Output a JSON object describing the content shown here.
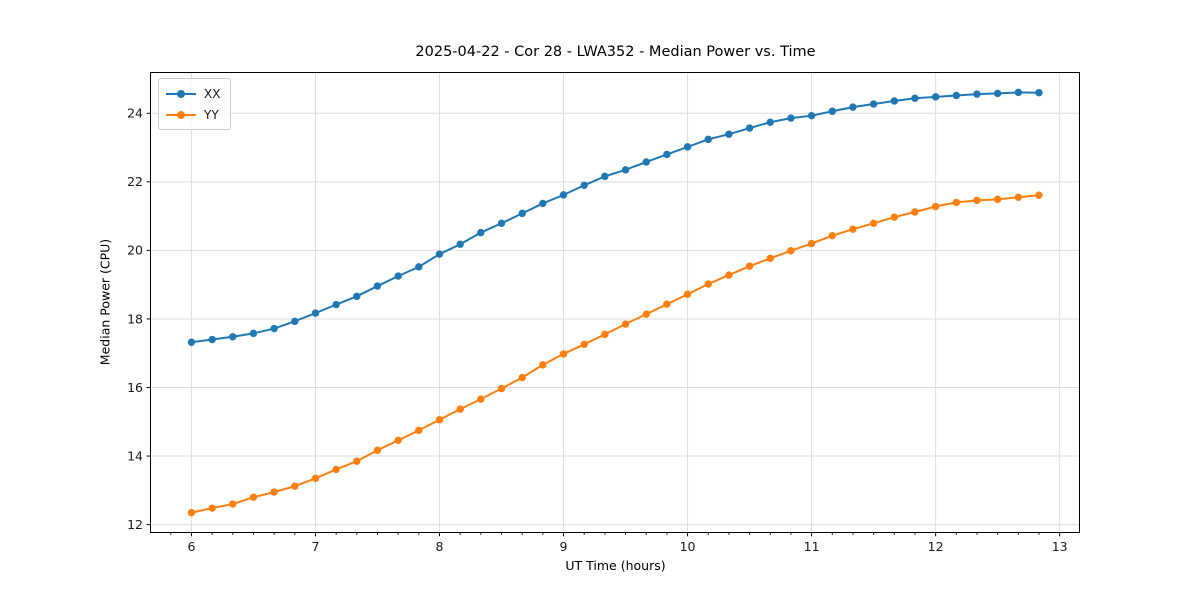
{
  "chart_data": {
    "type": "line",
    "title": "2025-04-22 - Cor 28 - LWA352 - Median Power vs. Time",
    "xlabel": "UT Time (hours)",
    "ylabel": "Median Power (CPU)",
    "xlim": [
      5.67,
      13.16
    ],
    "ylim": [
      11.77,
      25.19
    ],
    "x_ticks": [
      6,
      7,
      8,
      9,
      10,
      11,
      12,
      13
    ],
    "y_ticks": [
      12,
      14,
      16,
      18,
      20,
      22,
      24
    ],
    "x_minor_interval": 0.16667,
    "grid": true,
    "legend_position": "upper left",
    "marker": "o",
    "x": [
      6,
      6.167,
      6.333,
      6.5,
      6.667,
      6.833,
      7,
      7.167,
      7.333,
      7.5,
      7.667,
      7.833,
      8,
      8.167,
      8.333,
      8.5,
      8.667,
      8.833,
      9,
      9.167,
      9.333,
      9.5,
      9.667,
      9.833,
      10,
      10.167,
      10.333,
      10.5,
      10.667,
      10.833,
      11,
      11.167,
      11.333,
      11.5,
      11.667,
      11.833,
      12,
      12.167,
      12.333,
      12.5,
      12.667,
      12.833
    ],
    "series": [
      {
        "name": "XX",
        "color": "#1f77b4",
        "values": [
          17.32,
          17.4,
          17.48,
          17.58,
          17.72,
          17.93,
          18.17,
          18.42,
          18.66,
          18.96,
          19.25,
          19.52,
          19.89,
          20.18,
          20.52,
          20.79,
          21.08,
          21.37,
          21.62,
          21.9,
          22.16,
          22.35,
          22.58,
          22.8,
          23.02,
          23.24,
          23.39,
          23.57,
          23.74,
          23.86,
          23.93,
          24.06,
          24.18,
          24.27,
          24.36,
          24.44,
          24.48,
          24.52,
          24.56,
          24.58,
          24.61,
          24.6
        ]
      },
      {
        "name": "YY",
        "color": "#ff7f0e",
        "values": [
          12.35,
          12.48,
          12.6,
          12.8,
          12.95,
          13.12,
          13.35,
          13.61,
          13.85,
          14.17,
          14.46,
          14.75,
          15.06,
          15.37,
          15.66,
          15.97,
          16.29,
          16.66,
          16.98,
          17.26,
          17.55,
          17.85,
          18.14,
          18.43,
          18.72,
          19.02,
          19.28,
          19.54,
          19.77,
          19.99,
          20.2,
          20.43,
          20.62,
          20.79,
          20.97,
          21.12,
          21.28,
          21.4,
          21.46,
          21.49,
          21.55,
          21.61
        ]
      }
    ]
  },
  "style": {
    "grid_color": "#dedede",
    "spine_color": "#000000",
    "tick_label_color": "#1a1a1a"
  }
}
